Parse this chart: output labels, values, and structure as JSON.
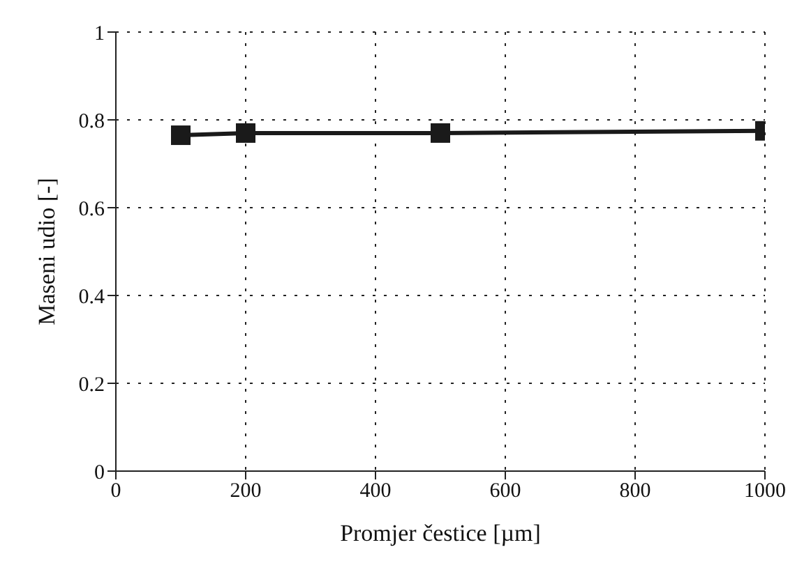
{
  "chart_data": {
    "type": "line",
    "xlabel": "Promjer čestice [µm]",
    "ylabel": "Maseni udio [-]",
    "x": [
      100,
      200,
      500,
      1000
    ],
    "series": [
      {
        "color": "#1a1a1a",
        "values": [
          0.765,
          0.77,
          0.77,
          0.775
        ]
      }
    ],
    "xlim": [
      0,
      1000
    ],
    "xticks": [
      0,
      200,
      400,
      600,
      800,
      1000
    ],
    "ylim": [
      0,
      1
    ],
    "yticks": [
      0,
      0.2,
      0.4,
      0.6,
      0.8,
      1
    ],
    "grid": true,
    "marker": "square",
    "line_style": "solid"
  }
}
